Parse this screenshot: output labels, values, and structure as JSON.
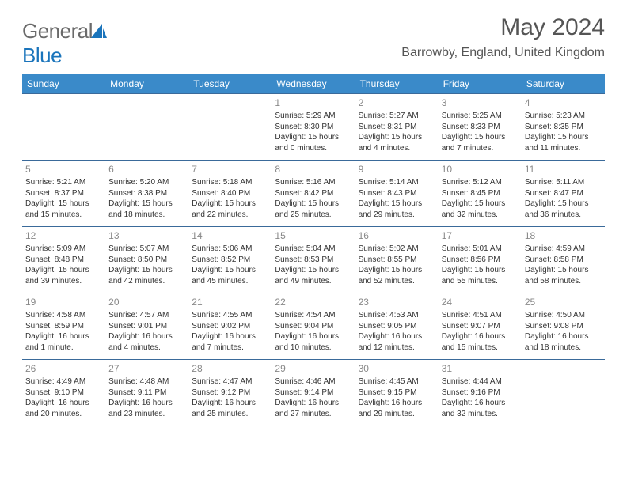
{
  "logo": {
    "text_gray": "General",
    "text_blue": "Blue"
  },
  "title": "May 2024",
  "location": "Barrowby, England, United Kingdom",
  "colors": {
    "header_bg": "#3a8ac9",
    "header_text": "#ffffff",
    "border": "#3a6a9a",
    "daynum": "#888888",
    "body_text": "#333333",
    "logo_gray": "#6a6a6a",
    "logo_blue": "#1a74bb"
  },
  "day_headers": [
    "Sunday",
    "Monday",
    "Tuesday",
    "Wednesday",
    "Thursday",
    "Friday",
    "Saturday"
  ],
  "weeks": [
    [
      {
        "n": "",
        "sr": "",
        "ss": "",
        "dl": ""
      },
      {
        "n": "",
        "sr": "",
        "ss": "",
        "dl": ""
      },
      {
        "n": "",
        "sr": "",
        "ss": "",
        "dl": ""
      },
      {
        "n": "1",
        "sr": "Sunrise: 5:29 AM",
        "ss": "Sunset: 8:30 PM",
        "dl": "Daylight: 15 hours and 0 minutes."
      },
      {
        "n": "2",
        "sr": "Sunrise: 5:27 AM",
        "ss": "Sunset: 8:31 PM",
        "dl": "Daylight: 15 hours and 4 minutes."
      },
      {
        "n": "3",
        "sr": "Sunrise: 5:25 AM",
        "ss": "Sunset: 8:33 PM",
        "dl": "Daylight: 15 hours and 7 minutes."
      },
      {
        "n": "4",
        "sr": "Sunrise: 5:23 AM",
        "ss": "Sunset: 8:35 PM",
        "dl": "Daylight: 15 hours and 11 minutes."
      }
    ],
    [
      {
        "n": "5",
        "sr": "Sunrise: 5:21 AM",
        "ss": "Sunset: 8:37 PM",
        "dl": "Daylight: 15 hours and 15 minutes."
      },
      {
        "n": "6",
        "sr": "Sunrise: 5:20 AM",
        "ss": "Sunset: 8:38 PM",
        "dl": "Daylight: 15 hours and 18 minutes."
      },
      {
        "n": "7",
        "sr": "Sunrise: 5:18 AM",
        "ss": "Sunset: 8:40 PM",
        "dl": "Daylight: 15 hours and 22 minutes."
      },
      {
        "n": "8",
        "sr": "Sunrise: 5:16 AM",
        "ss": "Sunset: 8:42 PM",
        "dl": "Daylight: 15 hours and 25 minutes."
      },
      {
        "n": "9",
        "sr": "Sunrise: 5:14 AM",
        "ss": "Sunset: 8:43 PM",
        "dl": "Daylight: 15 hours and 29 minutes."
      },
      {
        "n": "10",
        "sr": "Sunrise: 5:12 AM",
        "ss": "Sunset: 8:45 PM",
        "dl": "Daylight: 15 hours and 32 minutes."
      },
      {
        "n": "11",
        "sr": "Sunrise: 5:11 AM",
        "ss": "Sunset: 8:47 PM",
        "dl": "Daylight: 15 hours and 36 minutes."
      }
    ],
    [
      {
        "n": "12",
        "sr": "Sunrise: 5:09 AM",
        "ss": "Sunset: 8:48 PM",
        "dl": "Daylight: 15 hours and 39 minutes."
      },
      {
        "n": "13",
        "sr": "Sunrise: 5:07 AM",
        "ss": "Sunset: 8:50 PM",
        "dl": "Daylight: 15 hours and 42 minutes."
      },
      {
        "n": "14",
        "sr": "Sunrise: 5:06 AM",
        "ss": "Sunset: 8:52 PM",
        "dl": "Daylight: 15 hours and 45 minutes."
      },
      {
        "n": "15",
        "sr": "Sunrise: 5:04 AM",
        "ss": "Sunset: 8:53 PM",
        "dl": "Daylight: 15 hours and 49 minutes."
      },
      {
        "n": "16",
        "sr": "Sunrise: 5:02 AM",
        "ss": "Sunset: 8:55 PM",
        "dl": "Daylight: 15 hours and 52 minutes."
      },
      {
        "n": "17",
        "sr": "Sunrise: 5:01 AM",
        "ss": "Sunset: 8:56 PM",
        "dl": "Daylight: 15 hours and 55 minutes."
      },
      {
        "n": "18",
        "sr": "Sunrise: 4:59 AM",
        "ss": "Sunset: 8:58 PM",
        "dl": "Daylight: 15 hours and 58 minutes."
      }
    ],
    [
      {
        "n": "19",
        "sr": "Sunrise: 4:58 AM",
        "ss": "Sunset: 8:59 PM",
        "dl": "Daylight: 16 hours and 1 minute."
      },
      {
        "n": "20",
        "sr": "Sunrise: 4:57 AM",
        "ss": "Sunset: 9:01 PM",
        "dl": "Daylight: 16 hours and 4 minutes."
      },
      {
        "n": "21",
        "sr": "Sunrise: 4:55 AM",
        "ss": "Sunset: 9:02 PM",
        "dl": "Daylight: 16 hours and 7 minutes."
      },
      {
        "n": "22",
        "sr": "Sunrise: 4:54 AM",
        "ss": "Sunset: 9:04 PM",
        "dl": "Daylight: 16 hours and 10 minutes."
      },
      {
        "n": "23",
        "sr": "Sunrise: 4:53 AM",
        "ss": "Sunset: 9:05 PM",
        "dl": "Daylight: 16 hours and 12 minutes."
      },
      {
        "n": "24",
        "sr": "Sunrise: 4:51 AM",
        "ss": "Sunset: 9:07 PM",
        "dl": "Daylight: 16 hours and 15 minutes."
      },
      {
        "n": "25",
        "sr": "Sunrise: 4:50 AM",
        "ss": "Sunset: 9:08 PM",
        "dl": "Daylight: 16 hours and 18 minutes."
      }
    ],
    [
      {
        "n": "26",
        "sr": "Sunrise: 4:49 AM",
        "ss": "Sunset: 9:10 PM",
        "dl": "Daylight: 16 hours and 20 minutes."
      },
      {
        "n": "27",
        "sr": "Sunrise: 4:48 AM",
        "ss": "Sunset: 9:11 PM",
        "dl": "Daylight: 16 hours and 23 minutes."
      },
      {
        "n": "28",
        "sr": "Sunrise: 4:47 AM",
        "ss": "Sunset: 9:12 PM",
        "dl": "Daylight: 16 hours and 25 minutes."
      },
      {
        "n": "29",
        "sr": "Sunrise: 4:46 AM",
        "ss": "Sunset: 9:14 PM",
        "dl": "Daylight: 16 hours and 27 minutes."
      },
      {
        "n": "30",
        "sr": "Sunrise: 4:45 AM",
        "ss": "Sunset: 9:15 PM",
        "dl": "Daylight: 16 hours and 29 minutes."
      },
      {
        "n": "31",
        "sr": "Sunrise: 4:44 AM",
        "ss": "Sunset: 9:16 PM",
        "dl": "Daylight: 16 hours and 32 minutes."
      },
      {
        "n": "",
        "sr": "",
        "ss": "",
        "dl": ""
      }
    ]
  ]
}
